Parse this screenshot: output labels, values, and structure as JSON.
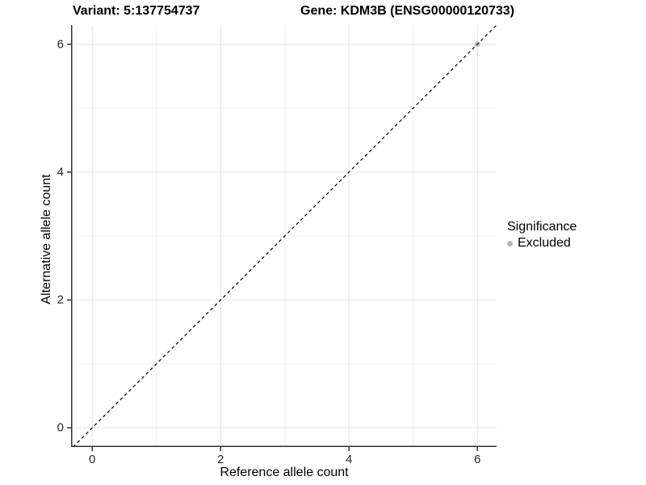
{
  "titles": {
    "variant": "Variant: 5:137754737",
    "gene": "Gene: KDM3B (ENSG00000120733)"
  },
  "axes": {
    "x_label": "Reference allele count",
    "y_label": "Alternative allele count"
  },
  "legend": {
    "title": "Significance",
    "items": [
      {
        "label": "Excluded",
        "color": "#b5b5b5",
        "marker": "circle"
      }
    ]
  },
  "colors": {
    "background": "#ffffff",
    "grid_major": "#e3e3e3",
    "grid_minor": "#f1f1f1",
    "axis_line": "#333333",
    "tick_text": "#262626",
    "point": "#bebebe",
    "reference_line": "#000000"
  },
  "chart_data": {
    "type": "scatter",
    "title": "",
    "xlabel": "Reference allele count",
    "ylabel": "Alternative allele count",
    "xlim": [
      -0.33,
      6.3
    ],
    "ylim": [
      -0.3,
      6.3
    ],
    "x_ticks": [
      0,
      2,
      4,
      6
    ],
    "y_ticks": [
      0,
      2,
      4,
      6
    ],
    "x_minor_ticks": [
      1,
      3,
      5
    ],
    "y_minor_ticks": [
      1,
      3,
      5
    ],
    "grid": true,
    "legend_position": "right",
    "series": [
      {
        "name": "Excluded",
        "color": "#bebebe",
        "points": [
          {
            "x": 6,
            "y": 6
          }
        ]
      }
    ],
    "reference_line": {
      "type": "identity",
      "slope": 1,
      "intercept": 0,
      "style": "dashed",
      "color": "#000000"
    }
  }
}
